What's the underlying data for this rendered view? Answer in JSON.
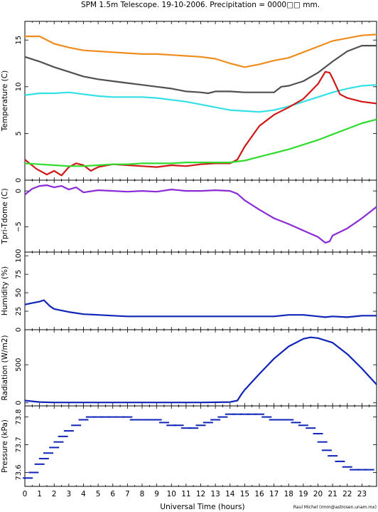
{
  "title": "SPM 1.5m Telescope. 19-10-2006. Precipitation = 0000□□ mm.",
  "xlabel": "Universal Time (hours)",
  "credit": "Raul Michel (rmm@astrosen.unam.mx)",
  "xticks": [
    "0",
    "1",
    "2",
    "3",
    "4",
    "5",
    "6",
    "7",
    "8",
    "9",
    "10",
    "11",
    "12",
    "13",
    "14",
    "15",
    "16",
    "17",
    "18",
    "19",
    "20",
    "21",
    "22",
    "23"
  ],
  "colors": {
    "orange": "#f08c1e",
    "gray": "#505050",
    "cyan": "#33e0e6",
    "red": "#d01818",
    "green": "#2fdc2f",
    "purple": "#8a2bd6",
    "blue": "#1024b8"
  },
  "chart_data": [
    {
      "id": "temperature",
      "type": "line",
      "ylabel": "Temperature (C)",
      "xlim": [
        0,
        24
      ],
      "ylim": [
        0,
        17
      ],
      "yticks": [
        0,
        5,
        10,
        15
      ],
      "yticklabels": [
        "0",
        "5",
        "10",
        "15"
      ],
      "series": [
        {
          "color": "orange",
          "x": [
            0,
            1,
            2,
            3,
            4,
            5,
            6,
            7,
            8,
            9,
            10,
            11,
            12,
            13,
            14,
            15,
            16,
            17,
            18,
            19,
            20,
            21,
            22,
            23,
            24
          ],
          "y": [
            15.4,
            15.4,
            14.6,
            14.2,
            13.9,
            13.8,
            13.7,
            13.6,
            13.5,
            13.5,
            13.4,
            13.3,
            13.2,
            13.0,
            12.5,
            12.1,
            12.4,
            12.8,
            13.1,
            13.7,
            14.3,
            14.9,
            15.2,
            15.5,
            15.6
          ]
        },
        {
          "color": "gray",
          "x": [
            0,
            1,
            2,
            3,
            4,
            5,
            6,
            7,
            8,
            9,
            10,
            11,
            12,
            12.5,
            13,
            14,
            15,
            16,
            17,
            17.5,
            18,
            19,
            20,
            21,
            22,
            23,
            24
          ],
          "y": [
            13.2,
            12.7,
            12.1,
            11.6,
            11.1,
            10.8,
            10.6,
            10.4,
            10.2,
            10.0,
            9.8,
            9.5,
            9.4,
            9.3,
            9.5,
            9.5,
            9.4,
            9.4,
            9.4,
            10.0,
            10.1,
            10.6,
            11.5,
            12.7,
            13.8,
            14.4,
            14.4
          ]
        },
        {
          "color": "cyan",
          "x": [
            0,
            1,
            2,
            3,
            4,
            5,
            6,
            7,
            8,
            9,
            10,
            11,
            12,
            13,
            14,
            15,
            16,
            17,
            18,
            19,
            20,
            21,
            22,
            23,
            24
          ],
          "y": [
            9.1,
            9.3,
            9.3,
            9.4,
            9.2,
            9.0,
            8.9,
            8.9,
            8.9,
            8.8,
            8.6,
            8.4,
            8.1,
            7.8,
            7.5,
            7.4,
            7.3,
            7.5,
            7.9,
            8.4,
            8.9,
            9.4,
            9.8,
            10.1,
            10.2
          ]
        },
        {
          "color": "red",
          "x": [
            0,
            0.8,
            1.5,
            2.0,
            2.5,
            3.0,
            3.5,
            4.0,
            4.5,
            5,
            6,
            7,
            8,
            9,
            10,
            11,
            12,
            13,
            14,
            14.5,
            15,
            16,
            17,
            18,
            19,
            20,
            20.5,
            20.8,
            21,
            21.5,
            22,
            23,
            24
          ],
          "y": [
            2.2,
            1.2,
            0.6,
            1.0,
            0.5,
            1.4,
            1.8,
            1.6,
            1.0,
            1.4,
            1.7,
            1.6,
            1.5,
            1.4,
            1.6,
            1.5,
            1.7,
            1.8,
            1.8,
            2.2,
            3.6,
            5.8,
            7.0,
            7.8,
            8.7,
            10.3,
            11.6,
            11.5,
            10.9,
            9.2,
            8.8,
            8.4,
            8.2
          ]
        },
        {
          "color": "green",
          "x": [
            0,
            1,
            2,
            3,
            4,
            5,
            6,
            7,
            8,
            9,
            10,
            11,
            12,
            13,
            14,
            15,
            16,
            17,
            18,
            19,
            20,
            21,
            22,
            23,
            24
          ],
          "y": [
            1.8,
            1.7,
            1.6,
            1.5,
            1.5,
            1.6,
            1.7,
            1.7,
            1.8,
            1.8,
            1.8,
            1.9,
            1.9,
            1.9,
            1.9,
            2.1,
            2.5,
            2.9,
            3.3,
            3.8,
            4.3,
            4.9,
            5.5,
            6.1,
            6.5
          ]
        }
      ]
    },
    {
      "id": "tpri",
      "type": "line",
      "ylabel": "Tpri-Tdome (C)",
      "xlim": [
        0,
        24
      ],
      "ylim": [
        -8.5,
        1.5
      ],
      "yticks": [
        0,
        -5
      ],
      "yticklabels": [
        "0",
        "−5"
      ],
      "series": [
        {
          "color": "purple",
          "x": [
            0,
            0.5,
            1,
            1.5,
            2,
            2.5,
            3,
            3.5,
            4,
            5,
            6,
            7,
            8,
            9,
            10,
            11,
            12,
            13,
            14,
            14.5,
            15,
            16,
            17,
            18,
            19,
            20,
            20.5,
            20.8,
            21,
            22,
            23,
            24
          ],
          "y": [
            -0.5,
            0.3,
            0.7,
            0.8,
            0.5,
            0.7,
            0.2,
            0.5,
            -0.2,
            0.1,
            0,
            -0.1,
            0,
            -0.1,
            0.2,
            0,
            0,
            0.1,
            0,
            -0.4,
            -1.3,
            -2.6,
            -3.8,
            -4.6,
            -5.5,
            -6.4,
            -7.2,
            -7.0,
            -6.2,
            -5.2,
            -3.8,
            -2.2
          ]
        }
      ]
    },
    {
      "id": "humidity",
      "type": "line",
      "ylabel": "Humidity (%)",
      "xlim": [
        0,
        24
      ],
      "ylim": [
        0,
        105
      ],
      "yticks": [
        0,
        25,
        50,
        75,
        100
      ],
      "yticklabels": [
        "0",
        "25",
        "50",
        "75",
        "100"
      ],
      "series": [
        {
          "color": "blue",
          "x": [
            0,
            0.5,
            1,
            1.3,
            1.7,
            2,
            3,
            4,
            5,
            6,
            7,
            8,
            9,
            10,
            11,
            12,
            13,
            14,
            15,
            16,
            17,
            18,
            19,
            20,
            20.5,
            21,
            22,
            23,
            24
          ],
          "y": [
            34,
            36,
            38,
            40,
            32,
            28,
            24,
            21,
            20,
            19,
            18,
            18,
            18,
            18,
            18,
            18,
            18,
            18,
            18,
            18,
            18,
            20,
            20,
            18,
            17,
            18,
            17,
            19,
            19
          ]
        }
      ]
    },
    {
      "id": "radiation",
      "type": "line",
      "ylabel": "Radiation (W/m2)",
      "xlim": [
        0,
        24
      ],
      "ylim": [
        -40,
        960
      ],
      "yticks": [
        0,
        500
      ],
      "yticklabels": [
        "0",
        "500"
      ],
      "series": [
        {
          "color": "blue",
          "x": [
            0,
            1,
            2,
            4,
            6,
            8,
            10,
            12,
            14,
            14.5,
            14.8,
            15,
            16,
            17,
            18,
            19,
            19.5,
            20,
            21,
            22,
            23,
            24
          ],
          "y": [
            30,
            10,
            5,
            5,
            5,
            5,
            5,
            5,
            10,
            30,
            120,
            170,
            380,
            580,
            740,
            840,
            860,
            850,
            790,
            640,
            450,
            240
          ]
        }
      ]
    },
    {
      "id": "pressure",
      "type": "scatter",
      "ylabel": "Pressure (kPa)",
      "xlim": [
        0,
        24
      ],
      "ylim": [
        73.55,
        73.84
      ],
      "yticks": [
        73.6,
        73.7,
        73.8
      ],
      "yticklabels": [
        "73.6",
        "73.7",
        "73.8"
      ],
      "series": [
        {
          "color": "blue",
          "x": [
            0.2,
            0.6,
            1,
            1.3,
            1.6,
            2,
            2.3,
            2.6,
            3,
            3.5,
            4,
            4.5,
            5,
            5.5,
            6,
            6.5,
            7,
            7.5,
            8,
            8.5,
            9,
            9.5,
            10,
            10.5,
            11,
            11.5,
            12,
            12.5,
            13,
            13.5,
            14,
            14.5,
            15,
            15.5,
            16,
            16.5,
            17,
            17.5,
            18,
            18.5,
            19,
            19.5,
            20,
            20.3,
            20.6,
            21,
            21.5,
            22,
            22.5,
            23,
            23.5
          ],
          "y": [
            73.58,
            73.6,
            73.63,
            73.65,
            73.67,
            73.69,
            73.71,
            73.73,
            73.75,
            73.77,
            73.79,
            73.8,
            73.8,
            73.8,
            73.8,
            73.8,
            73.8,
            73.79,
            73.79,
            73.79,
            73.79,
            73.78,
            73.77,
            73.77,
            73.76,
            73.76,
            73.77,
            73.78,
            73.79,
            73.8,
            73.81,
            73.81,
            73.81,
            73.81,
            73.81,
            73.8,
            73.79,
            73.79,
            73.79,
            73.78,
            73.77,
            73.76,
            73.74,
            73.71,
            73.68,
            73.66,
            73.64,
            73.62,
            73.61,
            73.61,
            73.61
          ]
        }
      ]
    }
  ]
}
